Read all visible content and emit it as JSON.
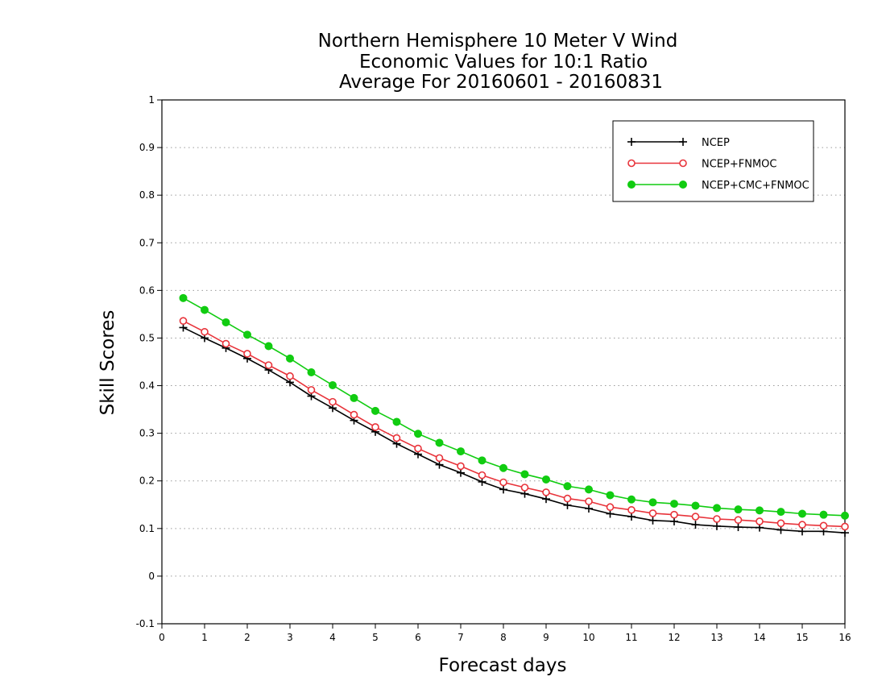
{
  "chart_data": {
    "type": "line",
    "title": [
      "Northern Hemisphere 10 Meter V Wind",
      "Economic Values for 10:1 Ratio",
      "Average For 20160601 - 20160831"
    ],
    "xlabel": "Forecast days",
    "ylabel": "Skill Scores",
    "xlim": [
      0,
      16
    ],
    "ylim": [
      -0.1,
      1
    ],
    "xticks": [
      "0",
      "1",
      "2",
      "3",
      "4",
      "5",
      "6",
      "7",
      "8",
      "9",
      "10",
      "11",
      "12",
      "13",
      "14",
      "15",
      "16"
    ],
    "yticks": [
      "-0.1",
      "0",
      "0.1",
      "0.2",
      "0.3",
      "0.4",
      "0.5",
      "0.6",
      "0.7",
      "0.8",
      "0.9",
      "1"
    ],
    "grid": "horizontal dotted",
    "legend_position": "top-right",
    "x": [
      0.5,
      1,
      1.5,
      2,
      2.5,
      3,
      3.5,
      4,
      4.5,
      5,
      5.5,
      6,
      6.5,
      7,
      7.5,
      8,
      8.5,
      9,
      9.5,
      10,
      10.5,
      11,
      11.5,
      12,
      12.5,
      13,
      13.5,
      14,
      14.5,
      15,
      15.5,
      16
    ],
    "series": [
      {
        "name": "NCEP",
        "color": "#000000",
        "marker": "plus",
        "values": [
          0.522,
          0.5,
          0.479,
          0.457,
          0.433,
          0.407,
          0.378,
          0.353,
          0.327,
          0.303,
          0.278,
          0.256,
          0.234,
          0.217,
          0.198,
          0.182,
          0.173,
          0.162,
          0.149,
          0.142,
          0.131,
          0.125,
          0.117,
          0.115,
          0.108,
          0.105,
          0.103,
          0.102,
          0.097,
          0.094,
          0.094,
          0.091
        ]
      },
      {
        "name": "NCEP+FNMOC",
        "color": "#e8333a",
        "marker": "open-circle",
        "values": [
          0.536,
          0.513,
          0.488,
          0.467,
          0.443,
          0.42,
          0.391,
          0.366,
          0.339,
          0.313,
          0.29,
          0.268,
          0.248,
          0.231,
          0.212,
          0.197,
          0.186,
          0.176,
          0.163,
          0.157,
          0.145,
          0.139,
          0.132,
          0.129,
          0.125,
          0.12,
          0.118,
          0.115,
          0.111,
          0.108,
          0.106,
          0.104
        ]
      },
      {
        "name": "NCEP+CMC+FNMOC",
        "color": "#11cc11",
        "marker": "filled-circle",
        "values": [
          0.584,
          0.559,
          0.533,
          0.507,
          0.483,
          0.457,
          0.428,
          0.401,
          0.374,
          0.347,
          0.324,
          0.299,
          0.28,
          0.262,
          0.243,
          0.227,
          0.214,
          0.203,
          0.189,
          0.182,
          0.17,
          0.161,
          0.155,
          0.152,
          0.148,
          0.143,
          0.14,
          0.138,
          0.135,
          0.131,
          0.129,
          0.127
        ]
      }
    ]
  }
}
